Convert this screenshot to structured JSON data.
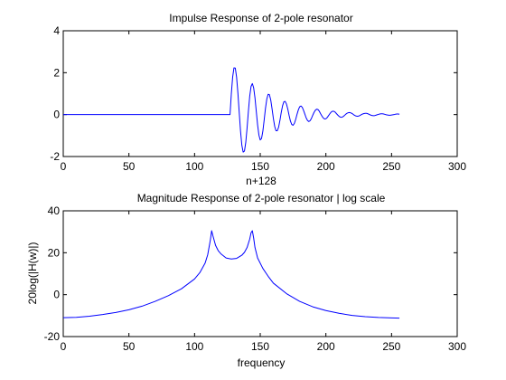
{
  "figure": {
    "background": "#ffffff",
    "line_color": "#0000ff",
    "axis_color": "#000000"
  },
  "chart_data": [
    {
      "type": "line",
      "title": "Impulse Response of 2-pole resonator",
      "xlabel": "n+128",
      "ylabel": "",
      "xlim": [
        0,
        300
      ],
      "ylim": [
        -2,
        4
      ],
      "xticks": [
        "0",
        "50",
        "100",
        "150",
        "200",
        "250",
        "300"
      ],
      "yticks": [
        "-2",
        "0",
        "2",
        "4"
      ],
      "grid": false,
      "series": [
        {
          "x": [
            0,
            127,
            128,
            129,
            130,
            131,
            132,
            133,
            134,
            135,
            136,
            137,
            138,
            139,
            140,
            141,
            142,
            143,
            144,
            145,
            146,
            147,
            148,
            149,
            150,
            151,
            152,
            153,
            154,
            155,
            156,
            157,
            158,
            159,
            160,
            161,
            162,
            163,
            164,
            165,
            166,
            167,
            168,
            169,
            170,
            171,
            172,
            173,
            174,
            175,
            176,
            177,
            178,
            179,
            180,
            181,
            182,
            183,
            184,
            185,
            186,
            187,
            188,
            189,
            190,
            191,
            192,
            193,
            194,
            195,
            196,
            197,
            198,
            199,
            200,
            201,
            202,
            203,
            204,
            205,
            206,
            207,
            208,
            209,
            210,
            211,
            212,
            213,
            214,
            215,
            216,
            217,
            218,
            219,
            220,
            221,
            222,
            223,
            224,
            225,
            226,
            227,
            228,
            229,
            230,
            231,
            232,
            233,
            234,
            235,
            236,
            237,
            238,
            239,
            240,
            241,
            242,
            243,
            244,
            245,
            246,
            247,
            248,
            249,
            250,
            251,
            252,
            253,
            254,
            255,
            256
          ],
          "y": [
            0,
            0,
            1.0,
            1.79,
            2.23,
            2.22,
            1.79,
            1.03,
            0.11,
            -0.79,
            -1.46,
            -1.79,
            -1.74,
            -1.32,
            -0.63,
            0.17,
            0.88,
            1.34,
            1.48,
            1.28,
            0.8,
            0.15,
            -0.49,
            -0.98,
            -1.21,
            -1.14,
            -0.79,
            -0.26,
            0.3,
            0.74,
            0.97,
            0.95,
            0.7,
            0.28,
            -0.18,
            -0.56,
            -0.77,
            -0.77,
            -0.6,
            -0.28,
            0.1,
            0.42,
            0.61,
            0.63,
            0.5,
            0.26,
            -0.04,
            -0.31,
            -0.47,
            -0.51,
            -0.42,
            -0.23,
            0.01,
            0.22,
            0.37,
            0.41,
            0.35,
            0.2,
            0.02,
            -0.16,
            -0.28,
            -0.33,
            -0.29,
            -0.18,
            -0.03,
            0.11,
            0.21,
            0.26,
            0.24,
            0.16,
            0.04,
            -0.07,
            -0.16,
            -0.21,
            -0.2,
            -0.14,
            -0.05,
            0.04,
            0.12,
            0.16,
            0.16,
            0.12,
            0.05,
            -0.02,
            -0.08,
            -0.12,
            -0.13,
            -0.1,
            -0.05,
            0.01,
            0.06,
            0.09,
            0.1,
            0.08,
            0.05,
            0.0,
            -0.04,
            -0.07,
            -0.08,
            -0.07,
            -0.04,
            0.0,
            0.03,
            0.05,
            0.06,
            0.06,
            0.04,
            0.01,
            -0.02,
            -0.04,
            -0.05,
            -0.05,
            -0.03,
            -0.01,
            0.01,
            0.03,
            0.04,
            0.04,
            0.03,
            0.01,
            -0.01,
            -0.02,
            -0.03,
            -0.03,
            -0.02,
            -0.01,
            0.0,
            0.02,
            0.03,
            0.03,
            0.02
          ]
        }
      ]
    },
    {
      "type": "line",
      "title": "Magnitude Response of 2-pole resonator | log scale",
      "xlabel": "frequency",
      "ylabel": "20log(|H(w)|)",
      "xlim": [
        0,
        300
      ],
      "ylim": [
        -20,
        40
      ],
      "xticks": [
        "0",
        "50",
        "100",
        "150",
        "200",
        "250",
        "300"
      ],
      "yticks": [
        "-20",
        "0",
        "20",
        "40"
      ],
      "grid": false,
      "series": [
        {
          "x": [
            0,
            10,
            20,
            30,
            40,
            50,
            60,
            70,
            80,
            90,
            100,
            104,
            108,
            110,
            112,
            113,
            114,
            116,
            118,
            120,
            124,
            128,
            132,
            136,
            138,
            140,
            142,
            143,
            144,
            145,
            146,
            148,
            152,
            156,
            160,
            170,
            180,
            190,
            200,
            210,
            220,
            230,
            240,
            250,
            256
          ],
          "y": [
            -11,
            -10.8,
            -10.3,
            -9.5,
            -8.5,
            -7.2,
            -5.5,
            -3.2,
            -0.5,
            2.8,
            7.5,
            10.5,
            15,
            19,
            26,
            30.5,
            28,
            23.5,
            21,
            19.5,
            17.5,
            17,
            17.3,
            18.8,
            20.2,
            22.5,
            26.5,
            29.5,
            30.5,
            27,
            22.5,
            17.5,
            12.5,
            8.8,
            5.5,
            0.5,
            -3.2,
            -5.8,
            -7.6,
            -8.9,
            -9.9,
            -10.5,
            -10.9,
            -11.1,
            -11.2
          ]
        }
      ]
    }
  ]
}
